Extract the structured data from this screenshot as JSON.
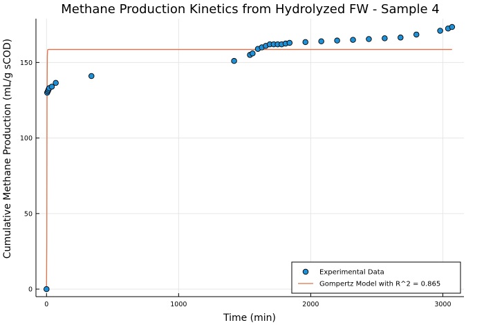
{
  "chart_data": {
    "type": "scatter",
    "title": "Methane Production Kinetics from Hydrolyzed FW - Sample 4",
    "xlabel": "Time (min)",
    "ylabel": "Cumulative Methane Production (mL/g sCOD)",
    "xlim": [
      -80,
      3160
    ],
    "ylim": [
      -5,
      179
    ],
    "xticks": [
      0,
      1000,
      2000,
      3000
    ],
    "yticks": [
      0,
      50,
      100,
      150
    ],
    "grid": true,
    "legend_position": "bottom-right",
    "series": [
      {
        "name": "Experimental Data",
        "type": "scatter",
        "color": "#1f8fd6",
        "x": [
          0,
          5,
          10,
          15,
          20,
          40,
          70,
          340,
          1420,
          1540,
          1560,
          1600,
          1630,
          1660,
          1690,
          1720,
          1750,
          1780,
          1810,
          1840,
          1960,
          2080,
          2200,
          2320,
          2440,
          2560,
          2680,
          2800,
          2980,
          3040,
          3070
        ],
        "y": [
          0,
          130,
          131,
          132,
          133,
          134,
          136.5,
          141,
          151,
          155,
          156,
          159,
          160,
          161,
          162,
          162,
          162,
          162,
          162.5,
          163,
          163.5,
          164,
          164.5,
          165,
          165.5,
          166,
          166.5,
          168.5,
          171,
          172.5,
          173.5
        ]
      },
      {
        "name": "Gompertz Model with R^2 = 0.865",
        "type": "line",
        "color": "#e26f46",
        "x": [
          0,
          2,
          4,
          6,
          8,
          10,
          15,
          30,
          3070
        ],
        "y": [
          0,
          30,
          125,
          154,
          158,
          158.5,
          158.6,
          158.6,
          158.6
        ]
      }
    ]
  }
}
